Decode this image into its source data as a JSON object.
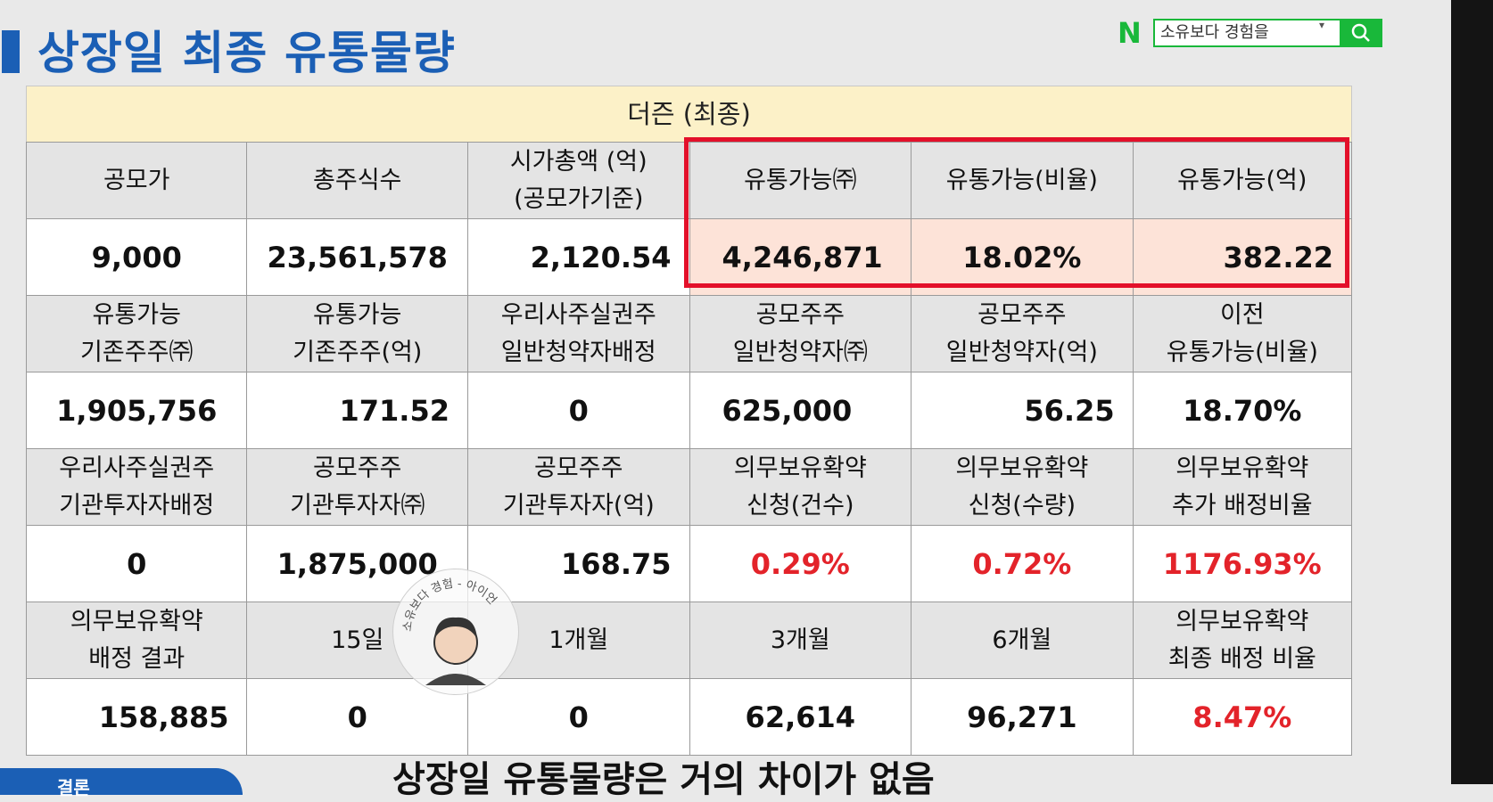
{
  "page_title": "상장일 최종 유통물량",
  "search": {
    "query": "소유보다 경험을",
    "logo": "N"
  },
  "table": {
    "header": "더즌 (최종)",
    "rows": [
      {
        "type": "label",
        "cells": [
          "공모가",
          "총주식수",
          "시가총액 (억)\n(공모가기준)",
          "유통가능㈜",
          "유통가능(비율)",
          "유통가능(억)"
        ]
      },
      {
        "type": "value",
        "cells": [
          "9,000",
          "23,561,578",
          "2,120.54",
          "4,246,871",
          "18.02%",
          "382.22"
        ]
      },
      {
        "type": "label",
        "cells": [
          "유통가능\n기존주주㈜",
          "유통가능\n기존주주(억)",
          "우리사주실권주\n일반청약자배정",
          "공모주주\n일반청약자㈜",
          "공모주주\n일반청약자(억)",
          "이전\n유통가능(비율)"
        ]
      },
      {
        "type": "value",
        "cells": [
          "1,905,756",
          "171.52",
          "0",
          "625,000",
          "56.25",
          "18.70%"
        ]
      },
      {
        "type": "label",
        "cells": [
          "우리사주실권주\n기관투자자배정",
          "공모주주\n기관투자자㈜",
          "공모주주\n기관투자자(억)",
          "의무보유확약\n신청(건수)",
          "의무보유확약\n신청(수량)",
          "의무보유확약\n추가 배정비율"
        ]
      },
      {
        "type": "value",
        "cells": [
          "0",
          "1,875,000",
          "168.75",
          "0.29%",
          "0.72%",
          "1176.93%"
        ]
      },
      {
        "type": "label",
        "cells": [
          "의무보유확약\n배정 결과",
          "15일",
          "1개월",
          "3개월",
          "6개월",
          "의무보유확약\n최종 배정 비율"
        ]
      },
      {
        "type": "value",
        "cells": [
          "158,885",
          "0",
          "0",
          "62,614",
          "96,271",
          "8.47%"
        ]
      }
    ]
  },
  "caption": "상장일 유통물량은 거의 차이가 없음",
  "tab_label": "결론",
  "watermark_text": "소유보다 경험 - 아이언"
}
